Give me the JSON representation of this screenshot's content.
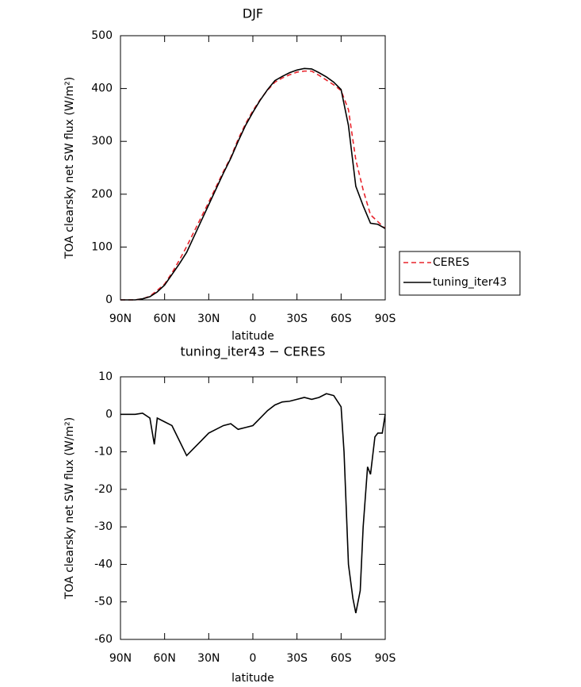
{
  "chart_data": [
    {
      "type": "line",
      "title": "DJF",
      "xlabel": "latitude",
      "ylabel": "TOA clearsky net SW flux (W/m²)",
      "x": [
        90,
        85,
        80,
        75,
        70,
        65,
        60,
        55,
        50,
        45,
        40,
        35,
        30,
        25,
        20,
        15,
        10,
        5,
        0,
        -5,
        -10,
        -15,
        -20,
        -25,
        -30,
        -35,
        -40,
        -45,
        -50,
        -55,
        -60,
        -65,
        -70,
        -75,
        -80,
        -85,
        -90
      ],
      "series": [
        {
          "name": "CERES",
          "color": "#e8242c",
          "dash": "6,4",
          "values": [
            0,
            0,
            0,
            2,
            7,
            18,
            30,
            51,
            75,
            101,
            129,
            157,
            185,
            214,
            243,
            270,
            304,
            333,
            358,
            379,
            397,
            412,
            420,
            426,
            431,
            433,
            433,
            425,
            416,
            407,
            396,
            360,
            265,
            208,
            161,
            148,
            135
          ]
        },
        {
          "name": "tuning_iter43",
          "color": "#000000",
          "values": [
            0,
            0,
            0,
            2,
            6,
            15,
            28,
            48,
            68,
            90,
            120,
            150,
            180,
            210,
            240,
            268,
            300,
            330,
            355,
            378,
            398,
            415,
            423,
            430,
            435,
            438,
            437,
            430,
            422,
            412,
            398,
            330,
            215,
            178,
            145,
            143,
            135
          ]
        }
      ],
      "xlim": [
        90,
        -90
      ],
      "xticks": [
        {
          "value": 90,
          "label": "90N"
        },
        {
          "value": 60,
          "label": "60N"
        },
        {
          "value": 30,
          "label": "30N"
        },
        0,
        {
          "value": -30,
          "label": "30S"
        },
        {
          "value": -60,
          "label": "60S"
        },
        {
          "value": -90,
          "label": "90S"
        }
      ],
      "ylim": [
        0,
        500
      ],
      "yticks": [
        0,
        100,
        200,
        300,
        400,
        500
      ],
      "legend": "right"
    },
    {
      "type": "line",
      "title": "tuning_iter43 − CERES",
      "xlabel": "latitude",
      "ylabel": "TOA clearsky net SW flux (W/m²)",
      "x": [
        90,
        85,
        80,
        75,
        70,
        67,
        65,
        60,
        55,
        50,
        45,
        40,
        35,
        30,
        25,
        20,
        15,
        10,
        5,
        0,
        -5,
        -10,
        -15,
        -20,
        -25,
        -30,
        -35,
        -40,
        -45,
        -50,
        -55,
        -60,
        -62,
        -65,
        -68,
        -70,
        -73,
        -75,
        -78,
        -80,
        -83,
        -85,
        -88,
        -90
      ],
      "values": [
        0,
        0,
        0,
        0.3,
        -1,
        -8,
        -1,
        -2,
        -3,
        -7,
        -11,
        -9,
        -7,
        -5,
        -4,
        -3,
        -2.5,
        -4,
        -3.5,
        -3,
        -1,
        1,
        2.5,
        3.3,
        3.5,
        4,
        4.5,
        4,
        4.5,
        5.5,
        5,
        2,
        -10,
        -40,
        -49,
        -53,
        -47,
        -30,
        -14,
        -16,
        -6,
        -5,
        -5,
        0
      ],
      "color": "#000000",
      "xlim": [
        90,
        -90
      ],
      "xticks": [
        {
          "value": 90,
          "label": "90N"
        },
        {
          "value": 60,
          "label": "60N"
        },
        {
          "value": 30,
          "label": "30N"
        },
        0,
        {
          "value": -30,
          "label": "30S"
        },
        {
          "value": -60,
          "label": "60S"
        },
        {
          "value": -90,
          "label": "90S"
        }
      ],
      "ylim": [
        -60,
        10
      ],
      "yticks": [
        10,
        0,
        -10,
        -20,
        -30,
        -40,
        -50,
        -60
      ]
    }
  ]
}
